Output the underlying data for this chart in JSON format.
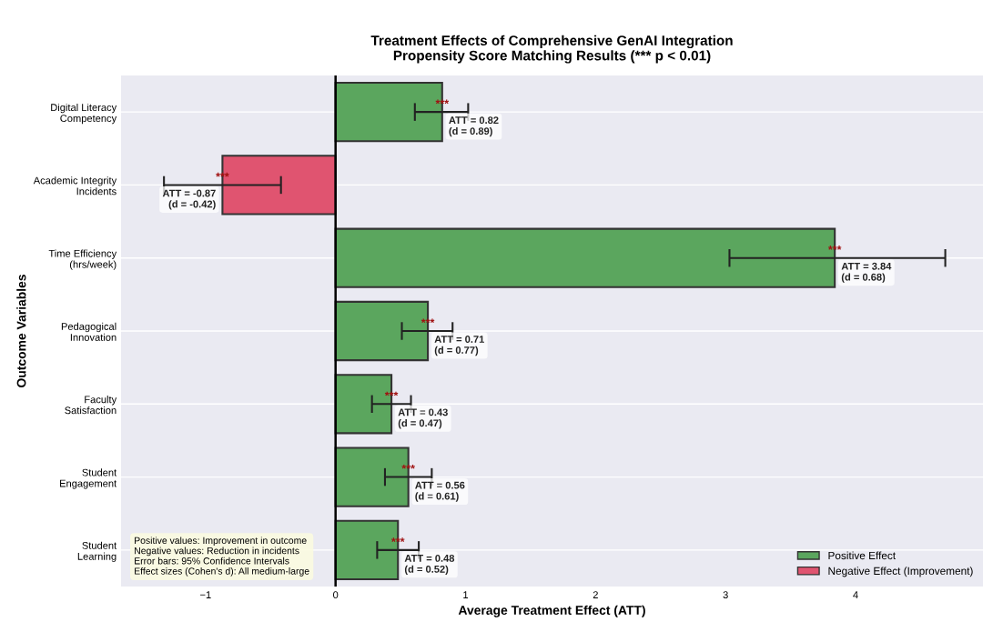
{
  "chart_data": {
    "type": "bar",
    "orientation": "horizontal",
    "title": "Treatment Effects of Comprehensive GenAI Integration",
    "subtitle": "Propensity Score Matching Results (*** p < 0.01)",
    "xlabel": "Average Treatment Effect (ATT)",
    "ylabel": "Outcome Variables",
    "categories": [
      "Digital Literacy\nCompetency",
      "Academic Integrity\nIncidents",
      "Time Efficiency\n(hrs/week)",
      "Pedagogical\nInnovation",
      "Faculty\nSatisfaction",
      "Student\nEngagement",
      "Student\nLearning"
    ],
    "series": [
      {
        "name": "Positive Effect",
        "color": "#5ba65e",
        "values": [
          0.82,
          null,
          3.84,
          0.71,
          0.43,
          0.56,
          0.48
        ],
        "errors": [
          [
            0.61,
            1.02
          ],
          null,
          [
            3.03,
            4.69
          ],
          [
            0.51,
            0.9
          ],
          [
            0.28,
            0.58
          ],
          [
            0.38,
            0.74
          ],
          [
            0.32,
            0.64
          ]
        ],
        "value_labels": [
          "ATT = 0.82\n(d = 0.89)",
          null,
          "ATT = 3.84\n(d = 0.68)",
          "ATT = 0.71\n(d = 0.77)",
          "ATT = 0.43\n(d = 0.47)",
          "ATT = 0.56\n(d = 0.61)",
          "ATT = 0.48\n(d = 0.52)"
        ]
      },
      {
        "name": "Negative Effect (Improvement)",
        "color": "#e05470",
        "values": [
          null,
          -0.87,
          null,
          null,
          null,
          null,
          null
        ],
        "errors": [
          null,
          [
            -1.32,
            -0.42
          ],
          null,
          null,
          null,
          null,
          null
        ],
        "value_labels": [
          null,
          "ATT = -0.87\n(d = -0.42)",
          null,
          null,
          null,
          null,
          null
        ]
      }
    ],
    "annotations": [
      {
        "text": "***",
        "x": 0.82,
        "y": "Digital Literacy\nCompetency"
      },
      {
        "text": "***",
        "x": -0.87,
        "y": "Academic Integrity\nIncidents"
      },
      {
        "text": "***",
        "x": 3.84,
        "y": "Time Efficiency\n(hrs/week)"
      },
      {
        "text": "***",
        "x": 0.71,
        "y": "Pedagogical\nInnovation"
      },
      {
        "text": "***",
        "x": 0.43,
        "y": "Faculty\nSatisfaction"
      },
      {
        "text": "***",
        "x": 0.56,
        "y": "Student\nEngagement"
      },
      {
        "text": "***",
        "x": 0.48,
        "y": "Student\nLearning"
      },
      "Positive values: Improvement in outcome\nNegative values: Reduction in incidents\nError bars: 95% Confidence Intervals\nEffect sizes (Cohen's d): All medium-large"
    ],
    "ref_lines": [
      {
        "axis": "x",
        "value": 0,
        "color": "#000000"
      }
    ],
    "xlim": [
      -1.65,
      4.98
    ],
    "xticks": [
      {
        "value": -1,
        "label": "−1"
      },
      0,
      1,
      2,
      3,
      4
    ],
    "grid": "y",
    "legend": "bottom right"
  }
}
